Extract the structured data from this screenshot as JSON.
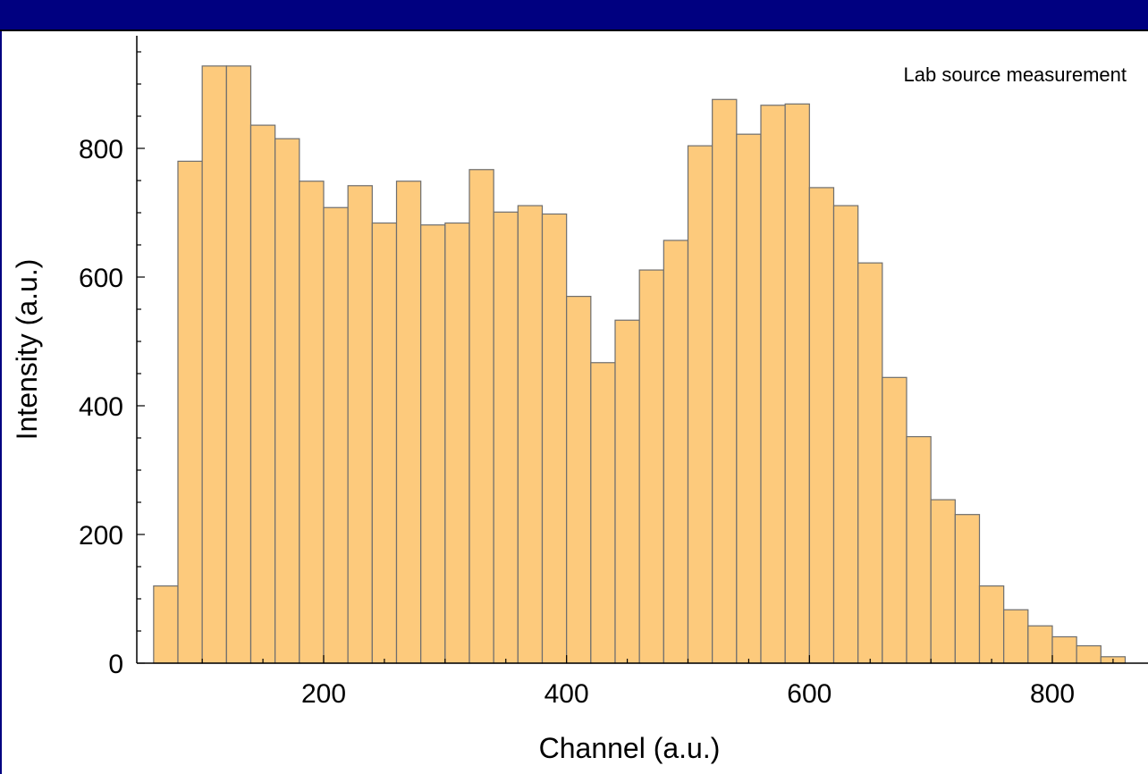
{
  "colors": {
    "header_band": "#000080",
    "bar_fill": "#fdca7c",
    "bar_stroke": "#6e6e6e",
    "axis": "#000000"
  },
  "chart_data": {
    "type": "bar",
    "xlabel": "Channel (a.u.)",
    "ylabel": "Intensity (a.u.)",
    "annotation": "Lab source measurement",
    "xlim": [
      50,
      860
    ],
    "ylim": [
      0,
      970
    ],
    "xticks": [
      200,
      400,
      600,
      800
    ],
    "yticks": [
      0,
      200,
      400,
      600,
      800
    ],
    "bin_width": 20,
    "bin_edges_start": 60,
    "values": [
      120,
      780,
      928,
      928,
      836,
      815,
      749,
      708,
      742,
      684,
      749,
      681,
      684,
      767,
      701,
      711,
      698,
      570,
      467,
      533,
      611,
      657,
      804,
      876,
      822,
      867,
      869,
      739,
      711,
      622,
      444,
      352,
      254,
      231,
      120,
      83,
      58,
      41,
      27,
      10
    ],
    "grid": false,
    "legend": "none"
  }
}
